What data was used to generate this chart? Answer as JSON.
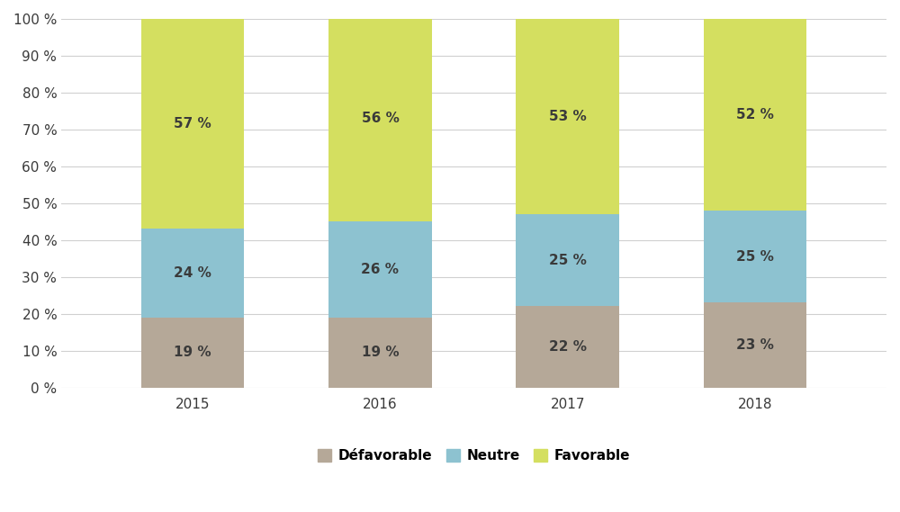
{
  "years": [
    "2015",
    "2016",
    "2017",
    "2018"
  ],
  "defavorable": [
    19,
    19,
    22,
    23
  ],
  "neutre": [
    24,
    26,
    25,
    25
  ],
  "favorable": [
    57,
    56,
    53,
    52
  ],
  "color_defavorable": "#b5a898",
  "color_neutre": "#8dc2d0",
  "color_favorable": "#d4df60",
  "legend_labels": [
    "Défavorable",
    "Neutre",
    "Favorable"
  ],
  "ylabel_ticks": [
    0,
    10,
    20,
    30,
    40,
    50,
    60,
    70,
    80,
    90,
    100
  ],
  "bar_width": 0.55,
  "background_color": "#ffffff",
  "grid_color": "#d0d0d0",
  "text_color": "#3a3a3a",
  "label_fontsize": 11,
  "tick_fontsize": 11,
  "legend_fontsize": 11
}
